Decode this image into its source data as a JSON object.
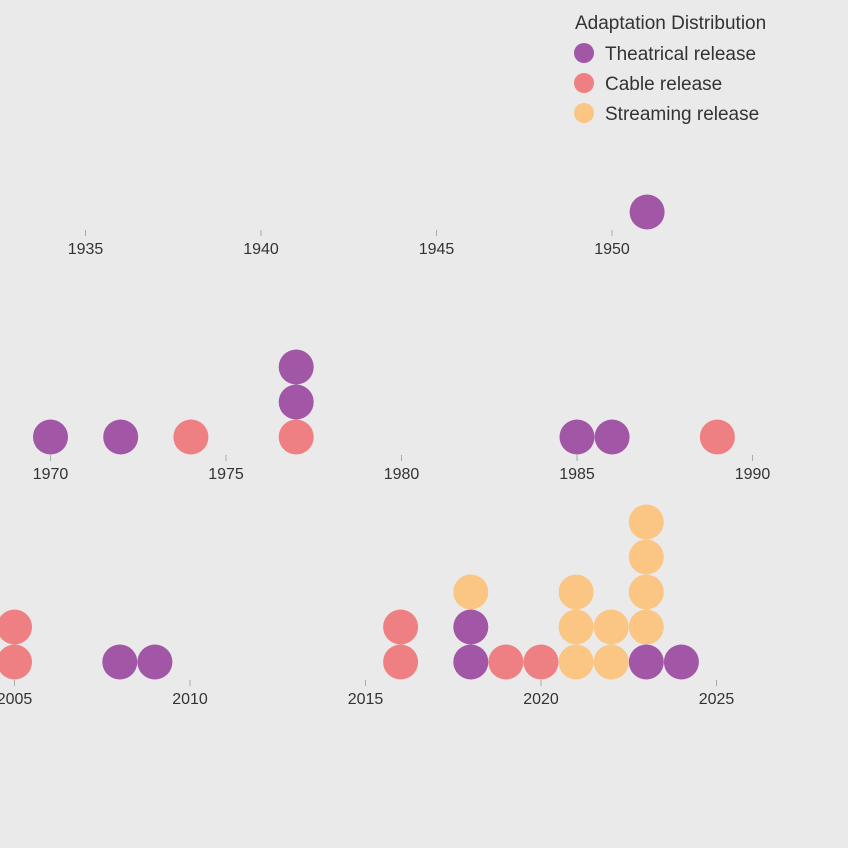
{
  "chart_data": {
    "type": "scatter",
    "legend": {
      "title": "Adaptation Distribution",
      "placement": "top-right",
      "items": [
        {
          "key": "theatrical",
          "label": "Theatrical release"
        },
        {
          "key": "cable",
          "label": "Cable release"
        },
        {
          "key": "streaming",
          "label": "Streaming release"
        }
      ]
    },
    "colors": {
      "theatrical": "#a157a5",
      "cable": "#ee7f82",
      "streaming": "#fbc584"
    },
    "rows": [
      {
        "xlim": [
          1930,
          1955
        ],
        "ticks": [
          1935,
          1940,
          1945,
          1950
        ],
        "tick_labels": [
          "1935",
          "1940",
          "1945",
          "1950"
        ],
        "points": [
          {
            "year": 1951,
            "stack": [
              "theatrical"
            ]
          }
        ]
      },
      {
        "xlim": [
          1965,
          1990
        ],
        "ticks": [
          1970,
          1975,
          1980,
          1985,
          1990
        ],
        "tick_labels": [
          "1970",
          "1975",
          "1980",
          "1985",
          "1990"
        ],
        "points": [
          {
            "year": 1970,
            "stack": [
              "theatrical"
            ]
          },
          {
            "year": 1972,
            "stack": [
              "theatrical"
            ]
          },
          {
            "year": 1974,
            "stack": [
              "cable"
            ]
          },
          {
            "year": 1977,
            "stack": [
              "cable",
              "theatrical",
              "theatrical"
            ]
          },
          {
            "year": 1985,
            "stack": [
              "theatrical"
            ]
          },
          {
            "year": 1986,
            "stack": [
              "theatrical"
            ]
          },
          {
            "year": 1989,
            "stack": [
              "cable"
            ]
          }
        ]
      },
      {
        "xlim": [
          2005,
          2025
        ],
        "ticks": [
          2005,
          2010,
          2015,
          2020,
          2025
        ],
        "tick_labels": [
          "2005",
          "2010",
          "2015",
          "2020",
          "2025"
        ],
        "points": [
          {
            "year": 2005,
            "stack": [
              "cable",
              "cable"
            ]
          },
          {
            "year": 2008,
            "stack": [
              "theatrical"
            ]
          },
          {
            "year": 2009,
            "stack": [
              "theatrical"
            ]
          },
          {
            "year": 2016,
            "stack": [
              "cable",
              "cable"
            ]
          },
          {
            "year": 2018,
            "stack": [
              "theatrical",
              "theatrical",
              "streaming"
            ]
          },
          {
            "year": 2019,
            "stack": [
              "cable"
            ]
          },
          {
            "year": 2020,
            "stack": [
              "cable"
            ]
          },
          {
            "year": 2021,
            "stack": [
              "streaming",
              "streaming",
              "streaming"
            ]
          },
          {
            "year": 2022,
            "stack": [
              "streaming",
              "streaming"
            ]
          },
          {
            "year": 2023,
            "stack": [
              "theatrical",
              "streaming",
              "streaming",
              "streaming",
              "streaming"
            ]
          },
          {
            "year": 2024,
            "stack": [
              "theatrical"
            ]
          }
        ]
      }
    ]
  }
}
